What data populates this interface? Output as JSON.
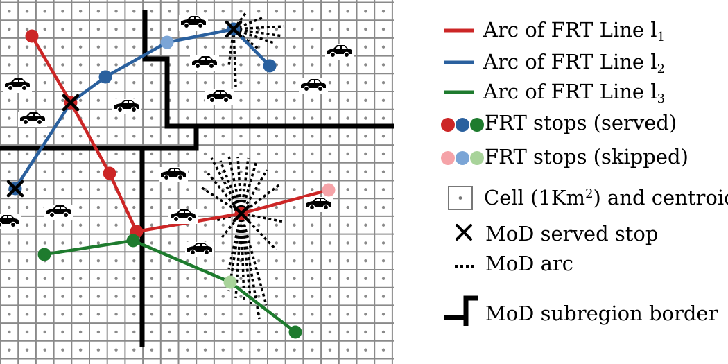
{
  "colors": {
    "red": "#cc2626",
    "blue": "#2a609e",
    "green": "#1e7b2e",
    "red_skipped": "#f5a3a8",
    "blue_skipped": "#7ba5d6",
    "green_skipped": "#a8d39a",
    "grid": "#8a8a8a",
    "border": "#000000"
  },
  "legend": {
    "red_arc": {
      "prefix": "Arc of FRT Line l",
      "sub": "1"
    },
    "blue_arc": {
      "prefix": "Arc of FRT Line l",
      "sub": "2"
    },
    "green_arc": {
      "prefix": "Arc of FRT Line l",
      "sub": "3"
    },
    "served": "FRT stops (served)",
    "skipped": "FRT stops (skipped)",
    "cell": {
      "prefix": "Cell (1Km",
      "sup": "2",
      "suffix": ") and centroid"
    },
    "mod_stop": "MoD served stop",
    "mod_arc": "MoD arc",
    "border": "MoD subregion border"
  },
  "icons": [
    "car-icon",
    "x-mark-icon",
    "stop-dot-icon",
    "centroid-dot-icon"
  ]
}
